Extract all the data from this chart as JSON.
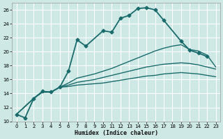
{
  "xlabel": "Humidex (Indice chaleur)",
  "xlim": [
    -0.5,
    23.5
  ],
  "ylim": [
    10,
    27
  ],
  "xticks": [
    0,
    1,
    2,
    3,
    4,
    5,
    6,
    7,
    8,
    9,
    10,
    11,
    12,
    13,
    14,
    15,
    16,
    17,
    18,
    19,
    20,
    21,
    22,
    23
  ],
  "yticks": [
    10,
    12,
    14,
    16,
    18,
    20,
    22,
    24,
    26
  ],
  "bg_color": "#cde8e5",
  "grid_color": "#ffffff",
  "line_color": "#1a6b6b",
  "main_line": {
    "x": [
      0,
      1,
      2,
      3,
      4,
      5,
      6,
      7,
      8,
      10,
      11,
      12,
      13,
      14,
      15,
      16,
      17,
      19,
      20,
      21,
      22
    ],
    "y": [
      11.0,
      10.5,
      13.3,
      14.3,
      14.2,
      14.9,
      17.2,
      21.7,
      20.8,
      23.0,
      22.8,
      24.8,
      25.2,
      26.2,
      26.3,
      26.0,
      24.5,
      21.5,
      20.2,
      19.8,
      19.3
    ],
    "marker": "D",
    "markersize": 2.5,
    "linewidth": 1.3
  },
  "other_lines": [
    {
      "x": [
        0,
        2,
        3,
        4,
        5,
        6,
        7,
        8,
        9,
        10,
        11,
        12,
        13,
        14,
        15,
        16,
        17,
        18,
        19,
        20,
        21,
        22,
        23
      ],
      "y": [
        11.0,
        13.3,
        14.2,
        14.2,
        14.9,
        15.5,
        16.2,
        16.5,
        16.8,
        17.2,
        17.6,
        18.1,
        18.6,
        19.1,
        19.6,
        20.1,
        20.5,
        20.8,
        21.0,
        20.3,
        20.1,
        19.5,
        17.8
      ],
      "linewidth": 1.0
    },
    {
      "x": [
        0,
        2,
        3,
        4,
        5,
        6,
        7,
        8,
        9,
        10,
        11,
        12,
        13,
        14,
        15,
        16,
        17,
        18,
        19,
        20,
        21,
        22,
        23
      ],
      "y": [
        11.0,
        13.3,
        14.2,
        14.2,
        14.9,
        15.2,
        15.6,
        15.8,
        16.0,
        16.3,
        16.6,
        16.9,
        17.2,
        17.5,
        17.8,
        18.0,
        18.2,
        18.3,
        18.4,
        18.3,
        18.1,
        17.8,
        17.5
      ],
      "linewidth": 1.0
    },
    {
      "x": [
        0,
        2,
        3,
        4,
        5,
        6,
        7,
        8,
        9,
        10,
        11,
        12,
        13,
        14,
        15,
        16,
        17,
        18,
        19,
        20,
        21,
        22,
        23
      ],
      "y": [
        11.0,
        13.3,
        14.2,
        14.2,
        14.9,
        15.0,
        15.2,
        15.3,
        15.4,
        15.5,
        15.7,
        15.9,
        16.1,
        16.3,
        16.5,
        16.6,
        16.8,
        16.9,
        17.0,
        16.9,
        16.8,
        16.6,
        16.4
      ],
      "linewidth": 1.0
    }
  ]
}
